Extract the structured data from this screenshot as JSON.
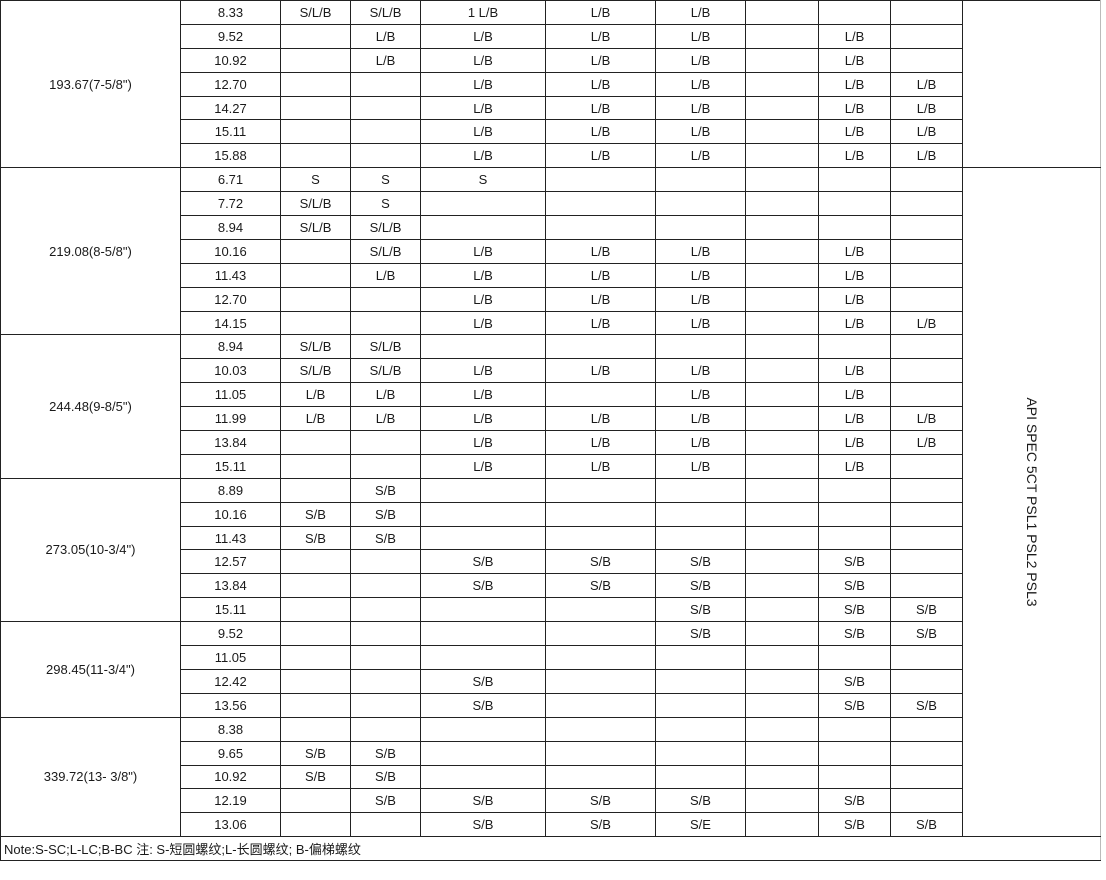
{
  "groups": [
    {
      "od": "193.67(7-5/8\")",
      "rows": [
        [
          "8.33",
          "S/L/B",
          "S/L/B",
          "1 L/B",
          "L/B",
          "L/B",
          "",
          "",
          ""
        ],
        [
          "9.52",
          "",
          "L/B",
          "L/B",
          "L/B",
          "L/B",
          "",
          "L/B",
          ""
        ],
        [
          "10.92",
          "",
          "L/B",
          "L/B",
          "L/B",
          "L/B",
          "",
          "L/B",
          ""
        ],
        [
          "12.70",
          "",
          "",
          "L/B",
          "L/B",
          "L/B",
          "",
          "L/B",
          "L/B"
        ],
        [
          "14.27",
          "",
          "",
          "L/B",
          "L/B",
          "L/B",
          "",
          "L/B",
          "L/B"
        ],
        [
          "15.11",
          "",
          "",
          "L/B",
          "L/B",
          "L/B",
          "",
          "L/B",
          "L/B"
        ],
        [
          "15.88",
          "",
          "",
          "L/B",
          "L/B",
          "L/B",
          "",
          "L/B",
          "L/B"
        ]
      ]
    },
    {
      "od": "219.08(8-5/8\")",
      "rows": [
        [
          "6.71",
          "S",
          "S",
          "S",
          "",
          "",
          "",
          "",
          ""
        ],
        [
          "7.72",
          "S/L/B",
          "S",
          "",
          "",
          "",
          "",
          "",
          ""
        ],
        [
          "8.94",
          "S/L/B",
          "S/L/B",
          "",
          "",
          "",
          "",
          "",
          ""
        ],
        [
          "10.16",
          "",
          "S/L/B",
          "L/B",
          "L/B",
          "L/B",
          "",
          "L/B",
          ""
        ],
        [
          "11.43",
          "",
          "L/B",
          "L/B",
          "L/B",
          "L/B",
          "",
          "L/B",
          ""
        ],
        [
          "12.70",
          "",
          "",
          "L/B",
          "L/B",
          "L/B",
          "",
          "L/B",
          ""
        ],
        [
          "14.15",
          "",
          "",
          "L/B",
          "L/B",
          "L/B",
          "",
          "L/B",
          "L/B"
        ]
      ]
    },
    {
      "od": "244.48(9-8/5\")",
      "rows": [
        [
          "8.94",
          "S/L/B",
          "S/L/B",
          "",
          "",
          "",
          "",
          "",
          ""
        ],
        [
          "10.03",
          "S/L/B",
          "S/L/B",
          "L/B",
          "L/B",
          "L/B",
          "",
          "L/B",
          ""
        ],
        [
          "11.05",
          "L/B",
          "L/B",
          "L/B",
          "",
          "L/B",
          "",
          "L/B",
          ""
        ],
        [
          "11.99",
          "L/B",
          "L/B",
          "L/B",
          "L/B",
          "L/B",
          "",
          "L/B",
          "L/B"
        ],
        [
          "13.84",
          "",
          "",
          "L/B",
          "L/B",
          "L/B",
          "",
          "L/B",
          "L/B"
        ],
        [
          "15.11",
          "",
          "",
          "L/B",
          "L/B",
          "L/B",
          "",
          "L/B",
          ""
        ]
      ]
    },
    {
      "od": "273.05(10-3/4\")",
      "rows": [
        [
          "8.89",
          "",
          "S/B",
          "",
          "",
          "",
          "",
          "",
          ""
        ],
        [
          "10.16",
          "S/B",
          "S/B",
          "",
          "",
          "",
          "",
          "",
          ""
        ],
        [
          "11.43",
          "S/B",
          "S/B",
          "",
          "",
          "",
          "",
          "",
          ""
        ],
        [
          "12.57",
          "",
          "",
          "S/B",
          "S/B",
          "S/B",
          "",
          "S/B",
          ""
        ],
        [
          "13.84",
          "",
          "",
          "S/B",
          "S/B",
          "S/B",
          "",
          "S/B",
          ""
        ],
        [
          "15.11",
          "",
          "",
          "",
          "",
          "S/B",
          "",
          "S/B",
          "S/B"
        ]
      ]
    },
    {
      "od": "298.45(11-3/4\")",
      "rows": [
        [
          "9.52",
          "",
          "",
          "",
          "",
          "S/B",
          "",
          "S/B",
          "S/B"
        ],
        [
          "11.05",
          "",
          "",
          "",
          "",
          "",
          "",
          "",
          ""
        ],
        [
          "12.42",
          "",
          "",
          "S/B",
          "",
          "",
          "",
          "S/B",
          ""
        ],
        [
          "13.56",
          "",
          "",
          "S/B",
          "",
          "",
          "",
          "S/B",
          "S/B"
        ]
      ]
    },
    {
      "od": "339.72(13- 3/8\")",
      "rows": [
        [
          "8.38",
          "",
          "",
          "",
          "",
          "",
          "",
          "",
          ""
        ],
        [
          "9.65",
          "S/B",
          "S/B",
          "",
          "",
          "",
          "",
          "",
          ""
        ],
        [
          "10.92",
          "S/B",
          "S/B",
          "",
          "",
          "",
          "",
          "",
          ""
        ],
        [
          "12.19",
          "",
          "S/B",
          "S/B",
          "S/B",
          "S/B",
          "",
          "S/B",
          ""
        ],
        [
          "13.06",
          "",
          "",
          "S/B",
          "S/B",
          "S/E",
          "",
          "S/B",
          "S/B"
        ]
      ]
    }
  ],
  "spec_label": "API SPEC 5CT PSL1 PSL2 PSL3",
  "note": "Note:S-SC;L-LC;B-BC 注: S-短圆螺纹;L-长圆螺纹; B-偏梯螺纹"
}
